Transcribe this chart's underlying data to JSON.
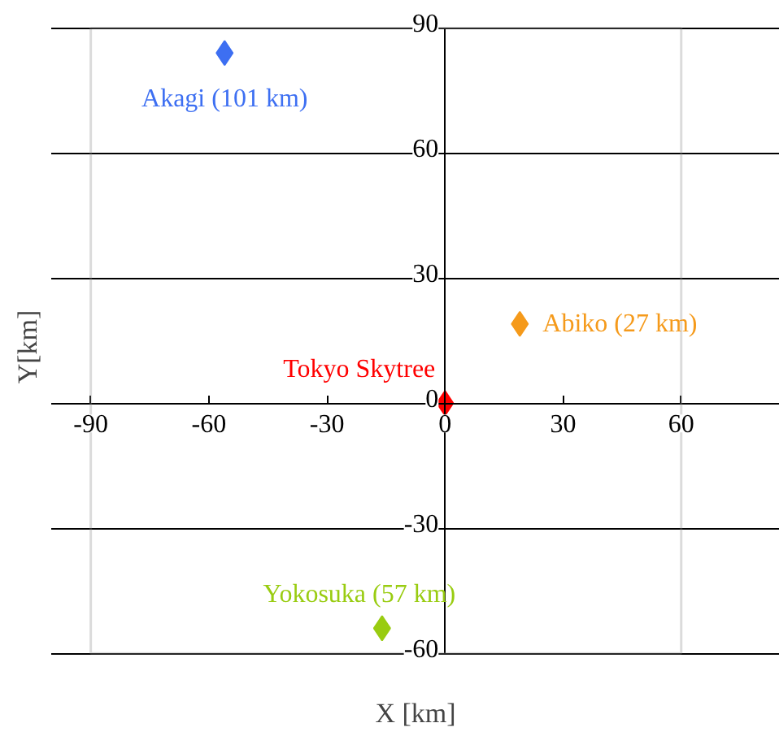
{
  "chart_data": {
    "type": "scatter",
    "xlabel": "X [km]",
    "ylabel": "Y[km]",
    "xlim": [
      -90,
      60
    ],
    "ylim": [
      -60,
      90
    ],
    "xticks": [
      -90,
      -60,
      -30,
      0,
      30,
      60
    ],
    "yticks": [
      -60,
      -30,
      0,
      30,
      60,
      90
    ],
    "grid": "y",
    "marker": "diamond",
    "legend": false,
    "series": [
      {
        "name": "Akagi (101 km)",
        "color": "#3d6ff2",
        "x": [
          -56
        ],
        "values": [
          84
        ]
      },
      {
        "name": "Abiko  (27 km)",
        "color": "#f59a1b",
        "x": [
          19
        ],
        "values": [
          19
        ]
      },
      {
        "name": "Tokyo Skytree",
        "color": "#ff0000",
        "x": [
          0
        ],
        "values": [
          0
        ]
      },
      {
        "name": "Yokosuka (57 km)",
        "color": "#99cc11",
        "x": [
          -16
        ],
        "values": [
          -54
        ]
      }
    ]
  }
}
